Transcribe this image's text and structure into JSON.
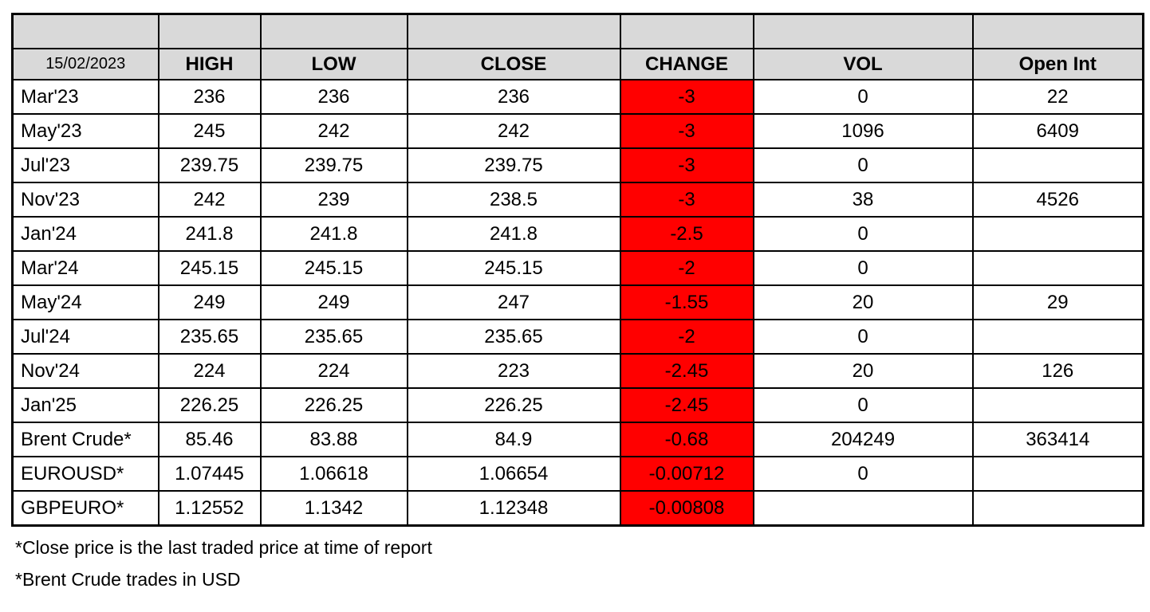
{
  "report": {
    "date": "15/02/2023",
    "columns": {
      "high": "HIGH",
      "low": "LOW",
      "close": "CLOSE",
      "change": "CHANGE",
      "vol": "VOL",
      "open_int": "Open Int"
    },
    "rows": [
      {
        "label": "Mar'23",
        "high": "236",
        "low": "236",
        "close": "236",
        "change": "-3",
        "vol": "0",
        "open_int": "22"
      },
      {
        "label": "May'23",
        "high": "245",
        "low": "242",
        "close": "242",
        "change": "-3",
        "vol": "1096",
        "open_int": "6409"
      },
      {
        "label": "Jul'23",
        "high": "239.75",
        "low": "239.75",
        "close": "239.75",
        "change": "-3",
        "vol": "0",
        "open_int": ""
      },
      {
        "label": "Nov'23",
        "high": "242",
        "low": "239",
        "close": "238.5",
        "change": "-3",
        "vol": "38",
        "open_int": "4526"
      },
      {
        "label": "Jan'24",
        "high": "241.8",
        "low": "241.8",
        "close": "241.8",
        "change": "-2.5",
        "vol": "0",
        "open_int": ""
      },
      {
        "label": "Mar'24",
        "high": "245.15",
        "low": "245.15",
        "close": "245.15",
        "change": "-2",
        "vol": "0",
        "open_int": ""
      },
      {
        "label": "May'24",
        "high": "249",
        "low": "249",
        "close": "247",
        "change": "-1.55",
        "vol": "20",
        "open_int": "29"
      },
      {
        "label": "Jul'24",
        "high": "235.65",
        "low": "235.65",
        "close": "235.65",
        "change": "-2",
        "vol": "0",
        "open_int": ""
      },
      {
        "label": "Nov'24",
        "high": "224",
        "low": "224",
        "close": "223",
        "change": "-2.45",
        "vol": "20",
        "open_int": "126"
      },
      {
        "label": "Jan'25",
        "high": "226.25",
        "low": "226.25",
        "close": "226.25",
        "change": "-2.45",
        "vol": "0",
        "open_int": ""
      },
      {
        "label": "Brent Crude*",
        "high": "85.46",
        "low": "83.88",
        "close": "84.9",
        "change": "-0.68",
        "vol": "204249",
        "open_int": "363414"
      },
      {
        "label": "EUROUSD*",
        "high": "1.07445",
        "low": "1.06618",
        "close": "1.06654",
        "change": "-0.00712",
        "vol": "0",
        "open_int": ""
      },
      {
        "label": "GBPEURO*",
        "high": "1.12552",
        "low": "1.1342",
        "close": "1.12348",
        "change": "-0.00808",
        "vol": "",
        "open_int": ""
      }
    ],
    "footnotes": [
      "*Close price is the last traded price at time of report",
      "*Brent Crude trades in USD"
    ],
    "colors": {
      "header_bg": "#d9d9d9",
      "change_bg": "#ff0000",
      "border": "#000000",
      "text": "#000000"
    }
  }
}
